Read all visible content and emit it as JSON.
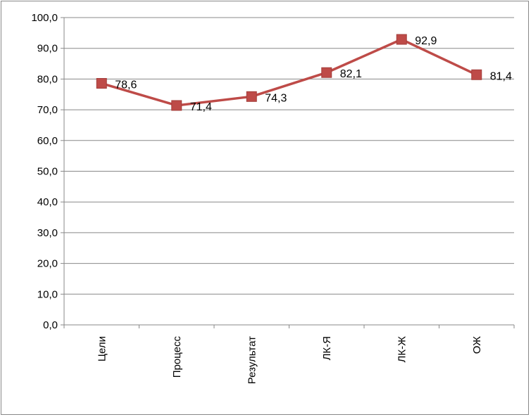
{
  "chart_data": {
    "type": "line",
    "categories": [
      "Цели",
      "Процесс",
      "Результат",
      "ЛК-Я",
      "ЛК-Ж",
      "ОЖ"
    ],
    "series": [
      {
        "values": [
          78.6,
          71.4,
          74.3,
          82.1,
          92.9,
          81.4
        ]
      }
    ],
    "data_labels": [
      "78,6",
      "71,4",
      "74,3",
      "82,1",
      "92,9",
      "81,4"
    ],
    "y_ticks": [
      "0,0",
      "10,0",
      "20,0",
      "30,0",
      "40,0",
      "50,0",
      "60,0",
      "70,0",
      "80,0",
      "90,0",
      "100,0"
    ],
    "ylim": [
      0,
      100
    ],
    "grid": true,
    "legend": "none",
    "title": "",
    "xlabel": "",
    "ylabel": "",
    "colors": {
      "line": "#BE4B48",
      "marker": "#BE4B48",
      "grid": "#888888"
    }
  }
}
